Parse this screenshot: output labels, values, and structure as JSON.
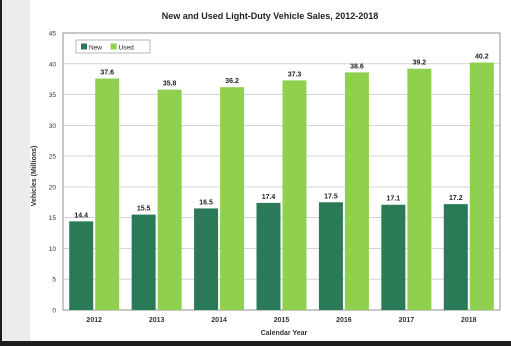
{
  "chart_data": {
    "type": "bar",
    "title": "New and Used Light-Duty Vehicle Sales, 2012-2018",
    "xlabel": "Calendar Year",
    "ylabel": "Vehicles (Millions)",
    "ylim": [
      0,
      45
    ],
    "yticks": [
      0,
      5,
      10,
      15,
      20,
      25,
      30,
      35,
      40,
      45
    ],
    "grid": true,
    "legend_position": "top-left",
    "categories": [
      "2012",
      "2013",
      "2014",
      "2015",
      "2016",
      "2017",
      "2018"
    ],
    "series": [
      {
        "name": "New",
        "color": "#2a7a57",
        "values": [
          14.4,
          15.5,
          16.5,
          17.4,
          17.5,
          17.1,
          17.2
        ]
      },
      {
        "name": "Used",
        "color": "#8fd14f",
        "values": [
          37.6,
          35.8,
          36.2,
          37.3,
          38.6,
          39.2,
          40.2
        ]
      }
    ]
  }
}
